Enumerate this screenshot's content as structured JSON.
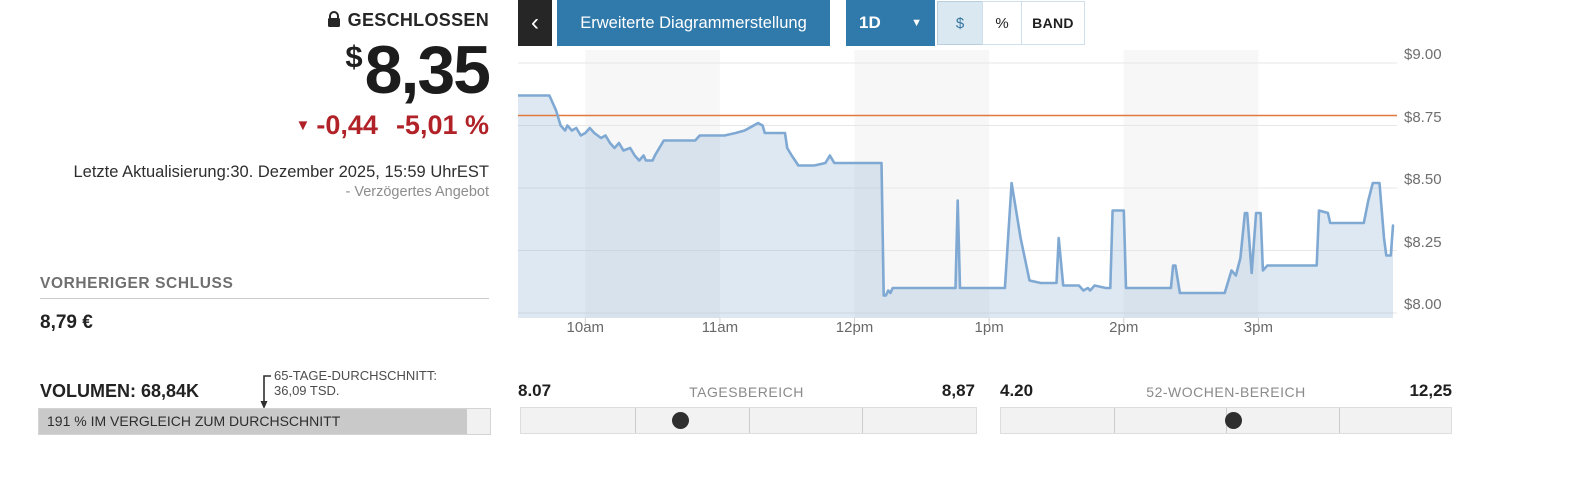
{
  "quote_panel": {
    "status_label": "GESCHLOSSEN",
    "currency_symbol": "$",
    "price": "8,35",
    "change_arrow": "▼",
    "change_abs": "-0,44",
    "change_pct": "-5,01 %",
    "last_update": "Letzte Aktualisierung:30. Dezember 2025, 15:59 UhrEST",
    "delayed_note": "- Verzögertes Angebot",
    "previous_close": {
      "label": "VORHERIGER SCHLUSS",
      "value": "8,79 €"
    },
    "volume": {
      "label": "VOLUMEN: 68,84K",
      "avg_line1": "65-TAGE-DURCHSCHNITT:",
      "avg_line2": "36,09 TSD.",
      "bar_text": "191 % IM VERGLEICH ZUM DURCHSCHNITT",
      "bar_fill_pct": 95
    }
  },
  "toolbar": {
    "back_glyph": "‹",
    "advanced_chart_label": "Erweiterte Diagrammerstellung",
    "range_label": "1D",
    "range_caret": "▼",
    "modes": [
      {
        "label": "$",
        "selected": true
      },
      {
        "label": "%",
        "selected": false
      },
      {
        "label": "BAND",
        "selected": false
      }
    ]
  },
  "chart_data": {
    "type": "area",
    "title": "Intraday-Kursverlauf 1D",
    "x_axis": {
      "unit": "minutes_since_09:30",
      "max": 390,
      "ticks": [
        {
          "t": 30,
          "label": "10am"
        },
        {
          "t": 90,
          "label": "11am"
        },
        {
          "t": 150,
          "label": "12pm"
        },
        {
          "t": 210,
          "label": "1pm"
        },
        {
          "t": 270,
          "label": "2pm"
        },
        {
          "t": 330,
          "label": "3pm"
        }
      ]
    },
    "y_axis": {
      "range": [
        8.0,
        9.0
      ],
      "ticks": [
        {
          "value": 9.0,
          "label": "$9.00"
        },
        {
          "value": 8.75,
          "label": "$8.75"
        },
        {
          "value": 8.5,
          "label": "$8.50"
        },
        {
          "value": 8.25,
          "label": "$8.25"
        },
        {
          "value": 8.0,
          "label": "$8.00"
        }
      ]
    },
    "previous_close_line": {
      "value": 8.79,
      "color": "#e0793e"
    },
    "session_bands": [
      [
        30,
        90
      ],
      [
        150,
        210
      ],
      [
        270,
        330
      ]
    ],
    "points": [
      [
        0,
        8.87
      ],
      [
        14,
        8.87
      ],
      [
        17,
        8.81
      ],
      [
        19,
        8.75
      ],
      [
        21,
        8.73
      ],
      [
        22,
        8.75
      ],
      [
        24,
        8.73
      ],
      [
        26,
        8.74
      ],
      [
        28,
        8.71
      ],
      [
        30,
        8.72
      ],
      [
        32,
        8.74
      ],
      [
        34,
        8.72
      ],
      [
        37,
        8.7
      ],
      [
        39,
        8.71
      ],
      [
        41,
        8.68
      ],
      [
        43,
        8.66
      ],
      [
        45,
        8.68
      ],
      [
        47,
        8.65
      ],
      [
        50,
        8.66
      ],
      [
        52,
        8.63
      ],
      [
        54,
        8.61
      ],
      [
        56,
        8.63
      ],
      [
        57,
        8.61
      ],
      [
        60,
        8.61
      ],
      [
        61,
        8.63
      ],
      [
        63,
        8.66
      ],
      [
        65,
        8.69
      ],
      [
        79,
        8.69
      ],
      [
        81,
        8.71
      ],
      [
        92,
        8.71
      ],
      [
        97,
        8.72
      ],
      [
        101,
        8.73
      ],
      [
        104,
        8.745
      ],
      [
        107,
        8.76
      ],
      [
        109,
        8.75
      ],
      [
        110,
        8.72
      ],
      [
        119,
        8.72
      ],
      [
        120,
        8.66
      ],
      [
        122,
        8.63
      ],
      [
        125,
        8.59
      ],
      [
        132,
        8.59
      ],
      [
        137,
        8.6
      ],
      [
        139,
        8.63
      ],
      [
        141,
        8.6
      ],
      [
        143,
        8.6
      ],
      [
        162,
        8.6
      ],
      [
        163,
        8.07
      ],
      [
        164,
        8.07
      ],
      [
        165,
        8.09
      ],
      [
        166,
        8.08
      ],
      [
        167,
        8.1
      ],
      [
        195,
        8.1
      ],
      [
        196,
        8.45
      ],
      [
        197,
        8.1
      ],
      [
        217,
        8.1
      ],
      [
        220,
        8.52
      ],
      [
        224,
        8.3
      ],
      [
        228,
        8.13
      ],
      [
        233,
        8.12
      ],
      [
        240,
        8.12
      ],
      [
        241,
        8.3
      ],
      [
        243,
        8.11
      ],
      [
        250,
        8.11
      ],
      [
        252,
        8.09
      ],
      [
        254,
        8.1
      ],
      [
        255,
        8.09
      ],
      [
        257,
        8.11
      ],
      [
        262,
        8.1
      ],
      [
        264,
        8.1
      ],
      [
        265,
        8.41
      ],
      [
        270,
        8.41
      ],
      [
        271,
        8.1
      ],
      [
        289,
        8.1
      ],
      [
        291,
        8.1
      ],
      [
        292,
        8.19
      ],
      [
        293,
        8.19
      ],
      [
        295,
        8.08
      ],
      [
        315,
        8.08
      ],
      [
        318,
        8.17
      ],
      [
        320,
        8.15
      ],
      [
        322,
        8.22
      ],
      [
        324,
        8.4
      ],
      [
        325,
        8.4
      ],
      [
        327,
        8.16
      ],
      [
        329,
        8.4
      ],
      [
        331,
        8.4
      ],
      [
        332,
        8.17
      ],
      [
        334,
        8.19
      ],
      [
        356,
        8.19
      ],
      [
        357,
        8.41
      ],
      [
        361,
        8.4
      ],
      [
        362,
        8.36
      ],
      [
        377,
        8.36
      ],
      [
        379,
        8.45
      ],
      [
        381,
        8.52
      ],
      [
        384,
        8.52
      ],
      [
        386,
        8.3
      ],
      [
        387,
        8.23
      ],
      [
        389,
        8.23
      ],
      [
        390,
        8.35
      ]
    ]
  },
  "ranges": {
    "day": {
      "low": "8.07",
      "label": "TAGESBEREICH",
      "high": "8,87",
      "marker_pct": 35
    },
    "week52": {
      "low": "4.20",
      "label": "52-WOCHEN-BEREICH",
      "high": "12,25",
      "marker_pct": 51.5
    }
  },
  "colors": {
    "toolbar_blue": "#3079ab",
    "back_button_bg": "#262626",
    "selected_mode_bg": "#dae8f2",
    "selected_mode_text": "#33749f",
    "negative_red": "#b12228",
    "chart_line": "#7fa9d3",
    "chart_fill": "rgba(137,171,209,0.28)",
    "previous_close_line": "#e0793e",
    "gridline": "#e7e7e7",
    "session_band": "#f7f7f7",
    "volume_bar_fill": "#c9c9c9",
    "volume_bar_bg": "#f1f1f1",
    "slider_track_bg": "#f2f2f2",
    "marker_dot": "#2f2f2f"
  }
}
